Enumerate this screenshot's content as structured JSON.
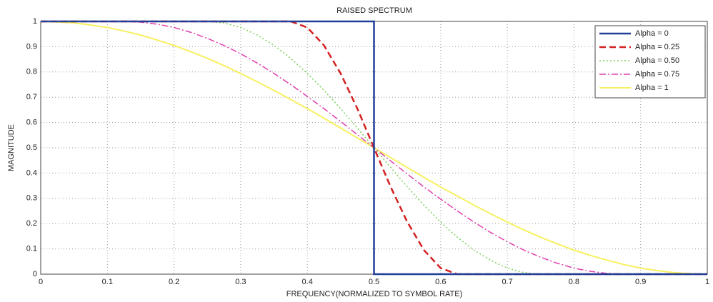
{
  "chart_data": {
    "type": "line",
    "title": "RAISED SPECTRUM",
    "x_label": "FREQUENCY(NORMALIZED TO SYMBOL RATE)",
    "y_label": "MAGNITUDE",
    "xlim": [
      0,
      1
    ],
    "ylim": [
      0,
      1
    ],
    "xticks": [
      0,
      0.1,
      0.2,
      0.3,
      0.4,
      0.5,
      0.6,
      0.7,
      0.8,
      0.9,
      1
    ],
    "yticks": [
      0,
      0.1,
      0.2,
      0.3,
      0.4,
      0.5,
      0.6,
      0.7,
      0.8,
      0.9,
      1
    ],
    "grid": true,
    "legend": "upper right",
    "series": [
      {
        "name": "Alpha = 0",
        "color": "#1f3f99",
        "dash": "solid",
        "width": 2.5,
        "x": [
          0,
          0.5,
          0.5,
          1
        ],
        "values": [
          1,
          1,
          0,
          0
        ]
      },
      {
        "name": "Alpha = 0.25",
        "color": "#d42020",
        "dash": "dashed",
        "width": 2.5,
        "x": [
          0,
          0.025,
          0.05,
          0.075,
          0.1,
          0.125,
          0.15,
          0.175,
          0.2,
          0.225,
          0.25,
          0.275,
          0.3,
          0.325,
          0.35,
          0.375,
          0.4,
          0.425,
          0.45,
          0.475,
          0.5,
          0.525,
          0.55,
          0.575,
          0.6,
          0.625,
          0.65,
          0.675,
          0.7,
          0.725,
          0.75,
          0.775,
          0.8,
          0.825,
          0.85,
          0.875,
          0.9,
          0.925,
          0.95,
          0.975,
          1
        ],
        "values": [
          1,
          1,
          1,
          1,
          1,
          1,
          1,
          1,
          1,
          1,
          1,
          1,
          1,
          1,
          1,
          1,
          0.976,
          0.905,
          0.794,
          0.655,
          0.5,
          0.345,
          0.206,
          0.095,
          0.024,
          0,
          0,
          0,
          0,
          0,
          0,
          0,
          0,
          0,
          0,
          0,
          0,
          0,
          0,
          0,
          0
        ]
      },
      {
        "name": "Alpha = 0.50",
        "color": "#7fcf5f",
        "dash": "dotted",
        "width": 1.5,
        "x": [
          0,
          0.025,
          0.05,
          0.075,
          0.1,
          0.125,
          0.15,
          0.175,
          0.2,
          0.225,
          0.25,
          0.275,
          0.3,
          0.325,
          0.35,
          0.375,
          0.4,
          0.425,
          0.45,
          0.475,
          0.5,
          0.525,
          0.55,
          0.575,
          0.6,
          0.625,
          0.65,
          0.675,
          0.7,
          0.725,
          0.75,
          0.775,
          0.8,
          0.825,
          0.85,
          0.875,
          0.9,
          0.925,
          0.95,
          0.975,
          1
        ],
        "values": [
          1,
          1,
          1,
          1,
          1,
          1,
          1,
          1,
          1,
          1,
          1,
          0.994,
          0.976,
          0.946,
          0.905,
          0.854,
          0.794,
          0.727,
          0.655,
          0.578,
          0.5,
          0.422,
          0.345,
          0.273,
          0.206,
          0.146,
          0.095,
          0.055,
          0.024,
          0.006,
          0,
          0,
          0,
          0,
          0,
          0,
          0,
          0,
          0,
          0,
          0
        ]
      },
      {
        "name": "Alpha = 0.75",
        "color": "#e040b0",
        "dash": "dashdot",
        "width": 1.5,
        "x": [
          0,
          0.025,
          0.05,
          0.075,
          0.1,
          0.125,
          0.15,
          0.175,
          0.2,
          0.225,
          0.25,
          0.275,
          0.3,
          0.325,
          0.35,
          0.375,
          0.4,
          0.425,
          0.45,
          0.475,
          0.5,
          0.525,
          0.55,
          0.575,
          0.6,
          0.625,
          0.65,
          0.675,
          0.7,
          0.725,
          0.75,
          0.775,
          0.8,
          0.825,
          0.85,
          0.875,
          0.9,
          0.925,
          0.95,
          0.975,
          1
        ],
        "values": [
          1,
          1,
          1,
          1,
          1,
          1,
          0.997,
          0.989,
          0.976,
          0.957,
          0.933,
          0.905,
          0.872,
          0.835,
          0.794,
          0.75,
          0.703,
          0.655,
          0.604,
          0.552,
          0.5,
          0.448,
          0.396,
          0.345,
          0.297,
          0.25,
          0.206,
          0.165,
          0.128,
          0.095,
          0.067,
          0.043,
          0.024,
          0.011,
          0.003,
          0,
          0,
          0,
          0,
          0,
          0
        ]
      },
      {
        "name": "Alpha = 1",
        "color": "#f7f060",
        "dash": "solid",
        "width": 2,
        "x": [
          0,
          0.025,
          0.05,
          0.075,
          0.1,
          0.125,
          0.15,
          0.175,
          0.2,
          0.225,
          0.25,
          0.275,
          0.3,
          0.325,
          0.35,
          0.375,
          0.4,
          0.425,
          0.45,
          0.475,
          0.5,
          0.525,
          0.55,
          0.575,
          0.6,
          0.625,
          0.65,
          0.675,
          0.7,
          0.725,
          0.75,
          0.775,
          0.8,
          0.825,
          0.85,
          0.875,
          0.9,
          0.925,
          0.95,
          0.975,
          1
        ],
        "values": [
          1,
          0.998,
          0.994,
          0.986,
          0.976,
          0.962,
          0.946,
          0.926,
          0.905,
          0.88,
          0.854,
          0.825,
          0.794,
          0.761,
          0.727,
          0.691,
          0.655,
          0.617,
          0.578,
          0.539,
          0.5,
          0.461,
          0.422,
          0.383,
          0.345,
          0.309,
          0.273,
          0.239,
          0.206,
          0.175,
          0.146,
          0.12,
          0.095,
          0.074,
          0.055,
          0.038,
          0.024,
          0.014,
          0.006,
          0.002,
          0
        ]
      }
    ]
  }
}
